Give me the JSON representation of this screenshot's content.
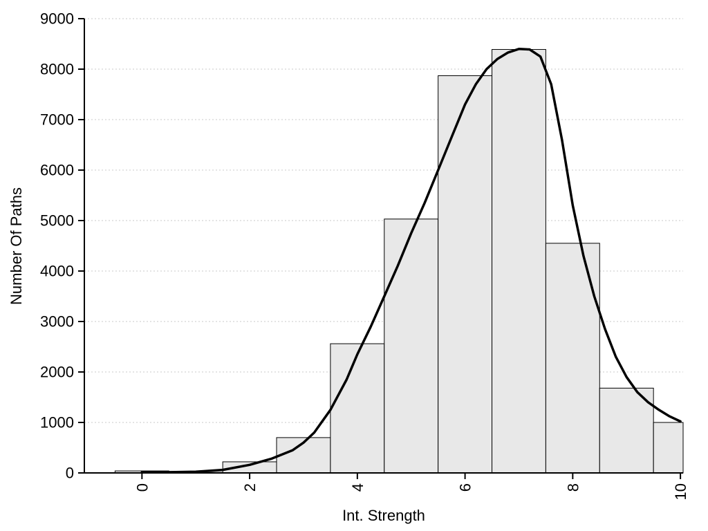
{
  "chart_data": {
    "type": "histogram",
    "title": "",
    "xlabel": "Int. Strength",
    "ylabel": "Number Of Paths",
    "xlim": [
      -1.07,
      10.05
    ],
    "ylim": [
      0,
      9000
    ],
    "x_ticks": [
      0,
      2,
      4,
      6,
      8,
      10
    ],
    "y_ticks": [
      0,
      1000,
      2000,
      3000,
      4000,
      5000,
      6000,
      7000,
      8000,
      9000
    ],
    "grid": "horizontal-dotted",
    "legend": "none",
    "bar_fill": "#e8e8e8",
    "bar_stroke": "#000000",
    "grid_color": "#c8c8c8",
    "axis_color": "#000000",
    "curve_color": "#000000",
    "bars": [
      {
        "x0": -0.5,
        "x1": 0.5,
        "value": 40
      },
      {
        "x0": 0.5,
        "x1": 1.5,
        "value": 10
      },
      {
        "x0": 1.5,
        "x1": 2.5,
        "value": 220
      },
      {
        "x0": 2.5,
        "x1": 3.5,
        "value": 700
      },
      {
        "x0": 3.5,
        "x1": 4.5,
        "value": 2560
      },
      {
        "x0": 4.5,
        "x1": 5.5,
        "value": 5030
      },
      {
        "x0": 5.5,
        "x1": 6.5,
        "value": 7870
      },
      {
        "x0": 6.5,
        "x1": 7.5,
        "value": 8390
      },
      {
        "x0": 7.5,
        "x1": 8.5,
        "value": 4550
      },
      {
        "x0": 8.5,
        "x1": 9.5,
        "value": 1680
      },
      {
        "x0": 9.5,
        "x1": 10.05,
        "value": 1000
      }
    ],
    "curve_points": [
      [
        0,
        15
      ],
      [
        0.5,
        15
      ],
      [
        1,
        25
      ],
      [
        1.5,
        60
      ],
      [
        2,
        160
      ],
      [
        2.4,
        280
      ],
      [
        2.8,
        450
      ],
      [
        3,
        600
      ],
      [
        3.2,
        800
      ],
      [
        3.5,
        1250
      ],
      [
        3.8,
        1850
      ],
      [
        4,
        2350
      ],
      [
        4.25,
        2900
      ],
      [
        4.5,
        3500
      ],
      [
        4.75,
        4100
      ],
      [
        5,
        4750
      ],
      [
        5.25,
        5350
      ],
      [
        5.5,
        6000
      ],
      [
        5.75,
        6650
      ],
      [
        6,
        7300
      ],
      [
        6.2,
        7700
      ],
      [
        6.4,
        8000
      ],
      [
        6.6,
        8200
      ],
      [
        6.8,
        8330
      ],
      [
        7,
        8400
      ],
      [
        7.2,
        8390
      ],
      [
        7.4,
        8250
      ],
      [
        7.6,
        7700
      ],
      [
        7.8,
        6600
      ],
      [
        8,
        5300
      ],
      [
        8.2,
        4300
      ],
      [
        8.4,
        3500
      ],
      [
        8.6,
        2850
      ],
      [
        8.8,
        2300
      ],
      [
        9,
        1900
      ],
      [
        9.2,
        1600
      ],
      [
        9.4,
        1400
      ],
      [
        9.6,
        1250
      ],
      [
        9.8,
        1120
      ],
      [
        10,
        1020
      ]
    ]
  }
}
